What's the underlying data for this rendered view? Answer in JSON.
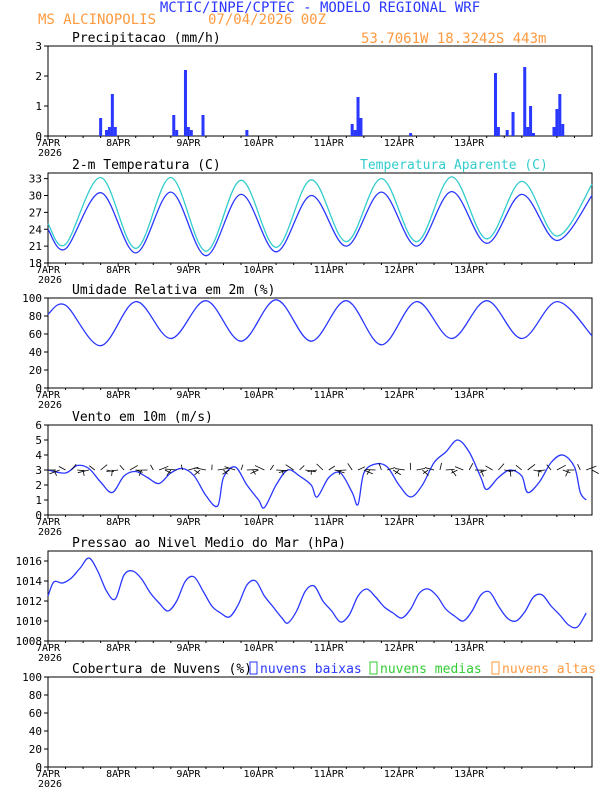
{
  "header": {
    "title": "MCTIC/INPE/CPTEC - MODELO REGIONAL WRF",
    "location": "MS ALCINOPOLIS",
    "run": "07/04/2026 00Z",
    "coords": "53.7061W 18.3242S 443m"
  },
  "colors": {
    "blue": "#2a37ff",
    "orange": "#ff9a40",
    "green": "#33cc33",
    "cyan": "#33cccc",
    "black": "#000000"
  },
  "x_axis": {
    "ticks": [
      "7APR",
      "8APR",
      "9APR",
      "10APR",
      "11APR",
      "12APR",
      "13APR"
    ],
    "year": "2026"
  },
  "chart_data": [
    {
      "id": "precip",
      "type": "bar",
      "title": "Precipitacao (mm/h)",
      "ylim": [
        0,
        3
      ],
      "yticks": [
        0,
        1,
        2,
        3
      ],
      "x_hours": [
        18,
        20,
        21,
        22,
        23,
        43,
        44,
        47,
        48,
        49,
        53,
        68,
        104,
        105,
        106,
        107,
        124,
        153,
        154,
        157,
        159,
        163,
        164,
        165,
        166,
        173,
        174,
        175,
        176
      ],
      "values": [
        0.6,
        0.2,
        0.3,
        1.4,
        0.3,
        0.7,
        0.2,
        2.2,
        0.3,
        0.2,
        0.7,
        0.2,
        0.4,
        0.2,
        1.3,
        0.6,
        0.1,
        2.1,
        0.3,
        0.2,
        0.8,
        2.3,
        0.3,
        1.0,
        0.1,
        0.3,
        0.9,
        1.4,
        0.4
      ]
    },
    {
      "id": "temp",
      "type": "line",
      "title": "2-m Temperatura (C)",
      "legend": "Temperatura Aparente (C)",
      "ylim": [
        18,
        34
      ],
      "yticks": [
        18,
        21,
        24,
        27,
        30,
        33
      ],
      "daily": [
        {
          "min": 20.5,
          "max": 30.5,
          "amax": 33.2
        },
        {
          "min": 19.8,
          "max": 30.6,
          "amax": 33.2
        },
        {
          "min": 19.3,
          "max": 30.2,
          "amax": 32.7
        },
        {
          "min": 20.0,
          "max": 30.0,
          "amax": 32.8
        },
        {
          "min": 21.0,
          "max": 30.6,
          "amax": 33.0
        },
        {
          "min": 21.0,
          "max": 30.7,
          "amax": 33.3
        },
        {
          "min": 21.5,
          "max": 30.2,
          "amax": 32.5
        },
        {
          "min": 22.0,
          "max": 30.0,
          "amax": 32.0
        }
      ]
    },
    {
      "id": "rh",
      "type": "line",
      "title": "Umidade Relativa em 2m (%)",
      "ylim": [
        0,
        100
      ],
      "yticks": [
        0,
        20,
        40,
        60,
        80,
        100
      ],
      "daily": [
        {
          "max": 92,
          "min": 47
        },
        {
          "max": 96,
          "min": 55
        },
        {
          "max": 97,
          "min": 52
        },
        {
          "max": 98,
          "min": 52
        },
        {
          "max": 97,
          "min": 48
        },
        {
          "max": 96,
          "min": 55
        },
        {
          "max": 97,
          "min": 55
        },
        {
          "max": 96,
          "min": 58
        }
      ]
    },
    {
      "id": "wind",
      "type": "line",
      "title": "Vento em 10m (m/s)",
      "ylim": [
        0,
        6
      ],
      "yticks": [
        0,
        1,
        2,
        3,
        4,
        5,
        6
      ],
      "speed_points": [
        [
          0,
          3.0
        ],
        [
          6,
          2.8
        ],
        [
          10,
          3.3
        ],
        [
          14,
          3.1
        ],
        [
          18,
          2.2
        ],
        [
          22,
          1.5
        ],
        [
          26,
          2.6
        ],
        [
          30,
          2.9
        ],
        [
          34,
          2.5
        ],
        [
          38,
          2.1
        ],
        [
          42,
          2.8
        ],
        [
          46,
          3.1
        ],
        [
          50,
          2.6
        ],
        [
          54,
          1.3
        ],
        [
          58,
          0.6
        ],
        [
          60,
          2.5
        ],
        [
          64,
          3.2
        ],
        [
          68,
          2.0
        ],
        [
          72,
          1.0
        ],
        [
          74,
          0.5
        ],
        [
          78,
          2.0
        ],
        [
          82,
          3.0
        ],
        [
          86,
          2.6
        ],
        [
          90,
          2.0
        ],
        [
          92,
          1.2
        ],
        [
          96,
          2.5
        ],
        [
          100,
          2.8
        ],
        [
          104,
          1.5
        ],
        [
          106,
          0.7
        ],
        [
          108,
          2.8
        ],
        [
          112,
          3.4
        ],
        [
          116,
          3.2
        ],
        [
          120,
          2.0
        ],
        [
          124,
          1.2
        ],
        [
          128,
          2.0
        ],
        [
          132,
          3.5
        ],
        [
          136,
          4.2
        ],
        [
          140,
          5.0
        ],
        [
          144,
          4.2
        ],
        [
          148,
          2.5
        ],
        [
          150,
          1.7
        ],
        [
          154,
          2.5
        ],
        [
          158,
          3.0
        ],
        [
          162,
          2.6
        ],
        [
          164,
          1.5
        ],
        [
          168,
          2.2
        ],
        [
          172,
          3.5
        ],
        [
          176,
          4.0
        ],
        [
          180,
          3.2
        ],
        [
          182,
          1.5
        ],
        [
          184,
          1.0
        ]
      ]
    },
    {
      "id": "pressure",
      "type": "line",
      "title": "Pressao ao Nivel Medio do Mar (hPa)",
      "ylim": [
        1008,
        1017
      ],
      "yticks": [
        1008,
        1010,
        1012,
        1014,
        1016
      ],
      "points": [
        [
          0,
          1012.5
        ],
        [
          2,
          1013.9
        ],
        [
          5,
          1013.8
        ],
        [
          8,
          1014.3
        ],
        [
          11,
          1015.3
        ],
        [
          14,
          1016.3
        ],
        [
          17,
          1015.0
        ],
        [
          20,
          1013.0
        ],
        [
          23,
          1012.2
        ],
        [
          26,
          1014.6
        ],
        [
          29,
          1015.0
        ],
        [
          32,
          1014.2
        ],
        [
          35,
          1012.8
        ],
        [
          38,
          1011.8
        ],
        [
          41,
          1011.0
        ],
        [
          44,
          1012.0
        ],
        [
          47,
          1014.0
        ],
        [
          50,
          1014.4
        ],
        [
          53,
          1013.0
        ],
        [
          56,
          1011.5
        ],
        [
          59,
          1010.8
        ],
        [
          62,
          1010.4
        ],
        [
          65,
          1011.6
        ],
        [
          68,
          1013.6
        ],
        [
          71,
          1014.0
        ],
        [
          74,
          1012.5
        ],
        [
          77,
          1011.4
        ],
        [
          80,
          1010.3
        ],
        [
          82,
          1009.8
        ],
        [
          85,
          1011.0
        ],
        [
          88,
          1013.0
        ],
        [
          91,
          1013.5
        ],
        [
          94,
          1012.0
        ],
        [
          97,
          1011.0
        ],
        [
          100,
          1009.9
        ],
        [
          103,
          1010.6
        ],
        [
          106,
          1012.5
        ],
        [
          109,
          1013.2
        ],
        [
          112,
          1012.4
        ],
        [
          115,
          1011.4
        ],
        [
          118,
          1010.8
        ],
        [
          121,
          1010.3
        ],
        [
          124,
          1011.2
        ],
        [
          127,
          1012.8
        ],
        [
          130,
          1013.2
        ],
        [
          133,
          1012.5
        ],
        [
          136,
          1011.2
        ],
        [
          139,
          1010.5
        ],
        [
          142,
          1010.0
        ],
        [
          145,
          1011.0
        ],
        [
          148,
          1012.6
        ],
        [
          151,
          1012.9
        ],
        [
          154,
          1011.5
        ],
        [
          157,
          1010.3
        ],
        [
          160,
          1010.0
        ],
        [
          163,
          1010.9
        ],
        [
          166,
          1012.4
        ],
        [
          169,
          1012.6
        ],
        [
          172,
          1011.5
        ],
        [
          175,
          1010.6
        ],
        [
          178,
          1009.6
        ],
        [
          181,
          1009.4
        ],
        [
          184,
          1010.8
        ]
      ]
    },
    {
      "id": "clouds",
      "type": "bar",
      "title": "Cobertura de Nuvens (%)",
      "ylim": [
        0,
        100
      ],
      "yticks": [
        0,
        20,
        40,
        60,
        80,
        100
      ],
      "legend": [
        "nuvens baixas",
        "nuvens medias",
        "nuvens altas"
      ],
      "low": [
        0,
        0,
        0,
        0,
        0,
        0,
        0,
        0,
        0,
        0,
        0,
        0,
        0,
        0,
        0,
        0,
        0,
        0,
        0,
        0,
        0,
        0,
        0,
        0,
        0,
        0,
        0,
        0,
        0,
        0,
        0,
        0,
        0,
        0,
        0,
        0,
        0,
        0,
        0,
        0,
        0,
        0,
        0,
        0,
        0,
        0,
        0,
        0,
        0,
        0,
        0,
        0,
        0,
        0,
        0,
        0,
        0,
        0,
        0,
        0,
        0,
        0,
        0,
        0,
        0,
        0,
        0,
        0,
        0,
        0,
        0,
        0,
        0,
        0,
        0,
        0,
        0,
        0,
        0,
        0,
        0,
        0,
        0,
        0,
        0,
        0,
        0,
        0,
        0,
        0,
        0,
        0,
        0,
        0,
        0,
        0,
        0,
        0,
        0,
        0,
        0,
        0,
        0,
        0,
        0,
        0,
        0,
        0,
        0,
        0,
        0,
        0,
        0,
        0,
        0,
        0,
        0,
        0,
        0,
        0,
        0,
        0,
        0,
        0,
        0,
        0,
        0,
        0,
        0,
        0,
        0,
        0,
        0,
        0,
        0,
        0,
        0,
        0,
        0,
        0,
        0,
        0,
        0,
        0,
        0,
        0,
        0,
        0,
        0,
        0,
        0,
        0,
        0,
        0,
        0,
        0,
        0,
        0,
        0,
        0,
        0,
        0,
        0,
        0,
        0,
        0,
        0,
        0,
        0,
        0,
        0,
        0,
        0,
        0,
        0,
        0,
        0,
        0,
        0,
        0,
        0,
        0,
        0,
        0,
        0
      ],
      "mid": [
        0,
        0,
        0,
        0,
        0,
        0,
        0,
        0,
        0,
        0,
        0,
        0,
        0,
        0,
        0,
        0,
        0,
        0,
        0,
        0,
        0,
        0,
        0,
        0,
        0,
        0,
        0,
        0,
        0,
        0,
        0,
        0,
        0,
        0,
        0,
        0,
        0,
        0,
        0,
        0,
        0,
        0,
        0,
        0,
        0,
        0,
        0,
        0,
        0,
        0,
        0,
        0,
        0,
        0,
        0,
        0,
        0,
        0,
        0,
        0,
        0,
        0,
        0,
        0,
        0,
        0,
        0,
        0,
        0,
        0,
        0,
        0,
        0,
        0,
        0,
        0,
        0,
        0,
        0,
        0,
        0,
        0,
        0,
        0,
        0,
        0,
        0,
        0,
        0,
        0,
        0,
        0,
        0,
        0,
        0,
        0,
        0,
        0,
        0,
        0,
        0,
        0,
        0,
        0,
        0,
        0,
        0,
        0,
        0,
        0,
        0,
        0,
        0,
        0,
        0,
        0,
        0,
        0,
        0,
        0,
        0,
        0,
        0,
        0,
        0,
        0,
        0,
        0,
        0,
        0,
        0,
        0,
        0,
        0,
        0,
        0,
        0,
        0,
        0,
        0,
        0,
        0,
        0,
        0,
        0,
        0,
        0,
        0,
        0,
        0,
        0,
        0,
        0,
        0,
        0,
        0,
        0,
        0,
        0,
        0,
        0,
        0,
        0,
        0,
        0,
        0,
        0,
        0,
        0,
        0,
        0,
        0,
        0,
        0,
        0,
        0,
        0,
        0,
        0,
        0,
        0,
        0,
        0,
        0,
        0
      ],
      "high": [
        0,
        0,
        0,
        0,
        0,
        0,
        0,
        0,
        0,
        0,
        0,
        0,
        0,
        0,
        0,
        0,
        0,
        0,
        0,
        0,
        0,
        0,
        0,
        0,
        0,
        0,
        0,
        0,
        0,
        0,
        0,
        0,
        0,
        0,
        0,
        0,
        0,
        0,
        0,
        0,
        0,
        0,
        0,
        0,
        0,
        0,
        0,
        0,
        0,
        0,
        0,
        0,
        0,
        0,
        0,
        0,
        0,
        0,
        0,
        0,
        0,
        0,
        0,
        0,
        0,
        0,
        0,
        0,
        0,
        0,
        0,
        0,
        0,
        0,
        0,
        0,
        0,
        0,
        0,
        0,
        0,
        0,
        0,
        0,
        0,
        0,
        0,
        0,
        0,
        0,
        0,
        0,
        0,
        0,
        0,
        0,
        0,
        0,
        0,
        0,
        0,
        0,
        0,
        0,
        0,
        0,
        0,
        0,
        0,
        0,
        0,
        0,
        0,
        0,
        0,
        0,
        0,
        0,
        0,
        0,
        0,
        0,
        0,
        0,
        0,
        0,
        0,
        0,
        0,
        0,
        0,
        0,
        0,
        0,
        0,
        0,
        0,
        0,
        0,
        0,
        0,
        0,
        0,
        0,
        0,
        0,
        0,
        0,
        0,
        0,
        0,
        0,
        0,
        0,
        0,
        0,
        0,
        0,
        0,
        0,
        0,
        0,
        0,
        0,
        0,
        0,
        0,
        0,
        0,
        0,
        0,
        0,
        0,
        0,
        0,
        0,
        0,
        0,
        0,
        0,
        0,
        0,
        0,
        0,
        0
      ]
    }
  ]
}
